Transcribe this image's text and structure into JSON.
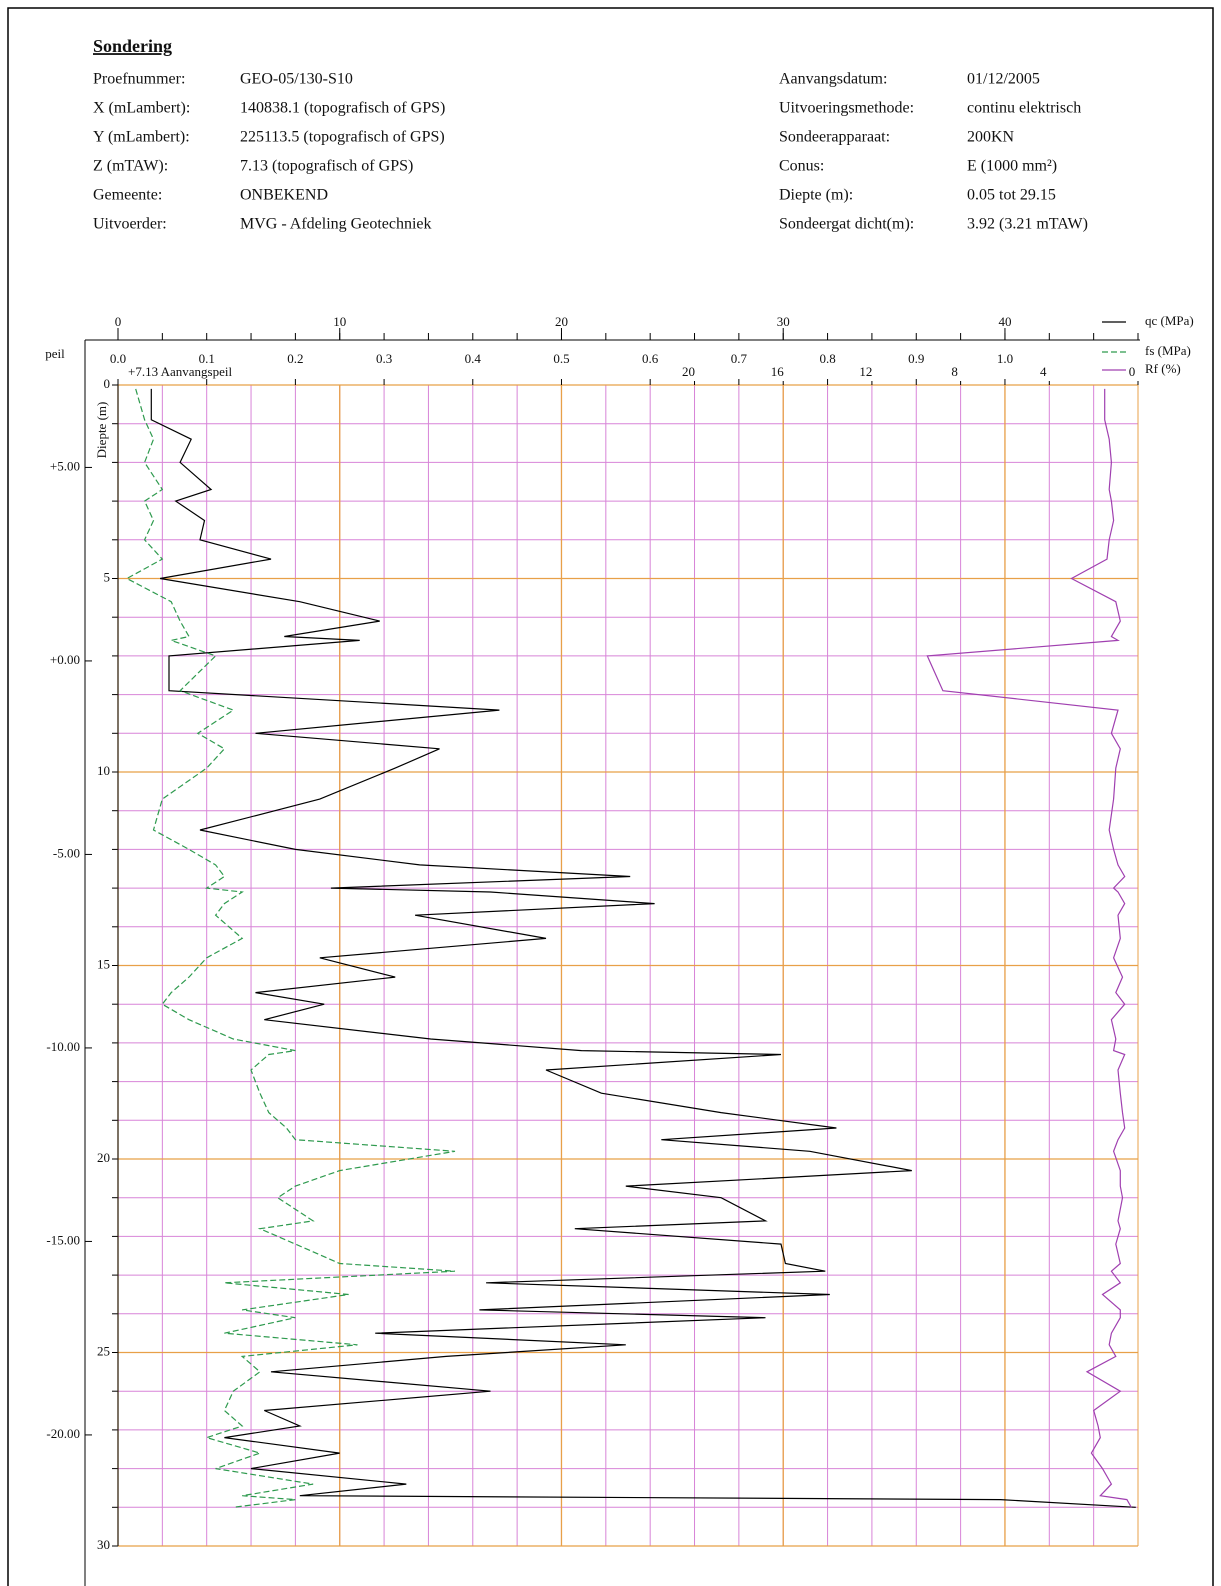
{
  "header": {
    "title": "Sondering",
    "left": [
      [
        "Proefnummer:",
        "GEO-05/130-S10"
      ],
      [
        "X (mLambert):",
        "140838.1 (topografisch of GPS)"
      ],
      [
        "Y (mLambert):",
        "225113.5 (topografisch of GPS)"
      ],
      [
        "Z (mTAW):",
        "7.13 (topografisch of GPS)"
      ],
      [
        "Gemeente:",
        "ONBEKEND"
      ],
      [
        "Uitvoerder:",
        "MVG - Afdeling Geotechniek"
      ]
    ],
    "right": [
      [
        "Aanvangsdatum:",
        "01/12/2005"
      ],
      [
        "Uitvoeringsmethode:",
        "continu elektrisch"
      ],
      [
        "Sondeerapparaat:",
        "200KN"
      ],
      [
        "Conus:",
        "E (1000 mm²)"
      ],
      [
        "Diepte (m):",
        "0.05 tot 29.15"
      ],
      [
        "Sondeergat dicht(m):",
        "3.92   (3.21 mTAW)"
      ]
    ]
  },
  "chart_data": {
    "type": "line",
    "depth": [
      0.1,
      0.9,
      1.4,
      2.0,
      2.7,
      3.0,
      3.5,
      4.0,
      4.5,
      5.0,
      5.6,
      6.1,
      6.5,
      6.6,
      7.0,
      7.9,
      8.4,
      9.0,
      9.4,
      9.9,
      10.7,
      11.5,
      12.0,
      12.4,
      12.7,
      13.0,
      13.1,
      13.4,
      13.7,
      14.3,
      14.8,
      15.3,
      15.7,
      16.0,
      16.4,
      16.9,
      17.2,
      17.3,
      17.7,
      18.3,
      18.8,
      19.2,
      19.5,
      19.8,
      20.3,
      20.7,
      21.0,
      21.6,
      21.8,
      22.2,
      22.7,
      22.9,
      23.2,
      23.5,
      23.9,
      24.1,
      24.5,
      24.8,
      25.1,
      25.5,
      26.0,
      26.5,
      26.9,
      27.2,
      27.6,
      28.0,
      28.4,
      28.7,
      28.8,
      29.0
    ],
    "series": [
      {
        "name": "qc (MPa)",
        "color": "#000000",
        "axis": "qc",
        "dashed": false,
        "values": [
          1.5,
          1.5,
          3.3,
          2.8,
          4.2,
          2.6,
          3.9,
          3.7,
          6.9,
          1.9,
          8.2,
          11.8,
          7.5,
          10.9,
          2.3,
          2.3,
          17.2,
          6.2,
          14.5,
          12.5,
          9.1,
          3.7,
          8.0,
          13.6,
          23.1,
          9.6,
          16.8,
          24.2,
          13.4,
          19.3,
          9.1,
          12.5,
          6.2,
          9.3,
          6.6,
          14.1,
          20.9,
          29.9,
          19.3,
          21.8,
          27.2,
          32.4,
          24.5,
          31.2,
          35.8,
          22.9,
          27.2,
          29.2,
          20.6,
          29.9,
          30.1,
          31.9,
          16.6,
          32.1,
          16.3,
          29.2,
          11.6,
          22.9,
          14.8,
          6.9,
          16.8,
          6.6,
          8.2,
          4.8,
          10.0,
          6.0,
          13.0,
          8.2,
          39.8,
          45.9
        ]
      },
      {
        "name": "fs (MPa)",
        "color": "#2e9a4e",
        "axis": "fs",
        "dashed": true,
        "values": [
          0.02,
          0.03,
          0.04,
          0.03,
          0.05,
          0.03,
          0.04,
          0.03,
          0.05,
          0.01,
          0.06,
          0.07,
          0.08,
          0.06,
          0.11,
          0.07,
          0.13,
          0.09,
          0.12,
          0.1,
          0.05,
          0.04,
          0.08,
          0.11,
          0.12,
          0.1,
          0.14,
          0.12,
          0.11,
          0.14,
          0.1,
          0.08,
          0.06,
          0.05,
          0.08,
          0.13,
          0.2,
          0.17,
          0.15,
          0.16,
          0.17,
          0.19,
          0.2,
          0.38,
          0.25,
          0.2,
          0.18,
          0.22,
          0.16,
          0.2,
          0.25,
          0.38,
          0.12,
          0.26,
          0.14,
          0.2,
          0.12,
          0.27,
          0.14,
          0.16,
          0.13,
          0.12,
          0.14,
          0.1,
          0.16,
          0.11,
          0.22,
          0.14,
          0.2,
          0.13
        ]
      },
      {
        "name": "Rf (%)",
        "color": "#a040b0",
        "axis": "rf",
        "dashed": false,
        "values": [
          1.5,
          1.5,
          1.3,
          1.2,
          1.3,
          1.2,
          1.1,
          1.3,
          1.4,
          3.0,
          1.0,
          0.8,
          1.2,
          0.9,
          9.5,
          8.8,
          0.9,
          1.2,
          0.8,
          1.0,
          1.1,
          1.3,
          1.1,
          0.9,
          0.6,
          1.1,
          0.9,
          0.6,
          0.9,
          0.8,
          1.1,
          0.7,
          1.0,
          0.6,
          1.2,
          1.0,
          1.1,
          0.6,
          0.9,
          0.8,
          0.7,
          0.6,
          0.9,
          1.1,
          0.8,
          0.8,
          0.7,
          0.9,
          0.8,
          1.0,
          0.8,
          1.2,
          0.8,
          1.6,
          0.8,
          0.8,
          1.2,
          1.3,
          1.0,
          2.3,
          0.8,
          2.0,
          1.8,
          1.7,
          2.1,
          1.6,
          1.2,
          1.7,
          0.5,
          0.3
        ]
      }
    ],
    "axes": {
      "qc": {
        "lim": [
          0,
          46
        ],
        "ticks": [
          0,
          10,
          20,
          30,
          40
        ]
      },
      "fs": {
        "lim": [
          0,
          1.15
        ],
        "ticks": [
          {
            "value": 0,
            "label": "0.0"
          },
          0.1,
          0.2,
          0.3,
          0.4,
          0.5,
          0.6,
          0.7,
          0.8,
          0.9,
          {
            "value": 1,
            "label": "1.0"
          }
        ]
      },
      "rf": {
        "lim": [
          46,
          0
        ],
        "ticks": [
          20,
          16,
          12,
          8,
          4,
          0
        ]
      }
    },
    "ylim": [
      0,
      30
    ],
    "yticks": [
      0,
      5,
      10,
      15,
      20,
      25,
      30
    ],
    "ylabel": "Diepte (m)",
    "peil": {
      "label": "peil",
      "reference": 7.13,
      "ticks": [
        {
          "value": 5,
          "label": "+5.00"
        },
        {
          "value": 0,
          "label": "+0.00"
        },
        {
          "value": -5,
          "label": "-5.00"
        },
        {
          "value": -10,
          "label": "-10.00"
        },
        {
          "value": -15,
          "label": "-15.00"
        },
        {
          "value": -20,
          "label": "-20.00"
        }
      ]
    },
    "annotation": "+7.13 Aanvangspeil",
    "grid": {
      "x_step": 2,
      "y_step": 1,
      "minor_color": "#d884d8",
      "major_color": "#e8a048"
    }
  }
}
